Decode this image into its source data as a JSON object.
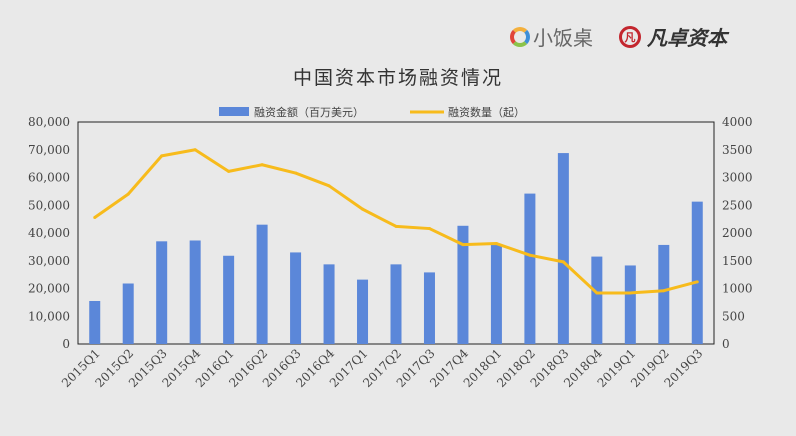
{
  "logos": {
    "left": "小饭桌",
    "right": "凡卓资本",
    "right_mark": "凡"
  },
  "chart_data": {
    "type": "bar",
    "title": "中国资本市场融资情况",
    "categories": [
      "2015Q1",
      "2015Q2",
      "2015Q3",
      "2015Q4",
      "2016Q1",
      "2016Q2",
      "2016Q3",
      "2016Q4",
      "2017Q1",
      "2017Q2",
      "2017Q3",
      "2017Q4",
      "2018Q1",
      "2018Q2",
      "2018Q3",
      "2018Q4",
      "2019Q1",
      "2019Q2",
      "2019Q3"
    ],
    "series": [
      {
        "name": "融资金额（百万美元）",
        "type": "bar",
        "axis": "left",
        "color": "#5b87d9",
        "values": [
          15500,
          21800,
          37000,
          37300,
          31800,
          43000,
          33000,
          28700,
          23200,
          28700,
          25800,
          42600,
          36000,
          54200,
          68800,
          31500,
          28300,
          35700,
          51300
        ]
      },
      {
        "name": "融资数量（起）",
        "type": "line",
        "axis": "right",
        "color": "#f7bb1c",
        "values": [
          2280,
          2700,
          3390,
          3500,
          3110,
          3230,
          3080,
          2850,
          2430,
          2120,
          2080,
          1790,
          1810,
          1600,
          1480,
          920,
          920,
          960,
          1120
        ]
      }
    ],
    "left_axis": {
      "ylim": [
        0,
        80000
      ],
      "ticks": [
        "0",
        "10,000",
        "20,000",
        "30,000",
        "40,000",
        "50,000",
        "60,000",
        "70,000",
        "80,000"
      ]
    },
    "right_axis": {
      "ylim": [
        0,
        4000
      ],
      "ticks": [
        "0",
        "500",
        "1000",
        "1500",
        "2000",
        "2500",
        "3000",
        "3500",
        "4000"
      ]
    },
    "legend": "top",
    "grid": false
  }
}
